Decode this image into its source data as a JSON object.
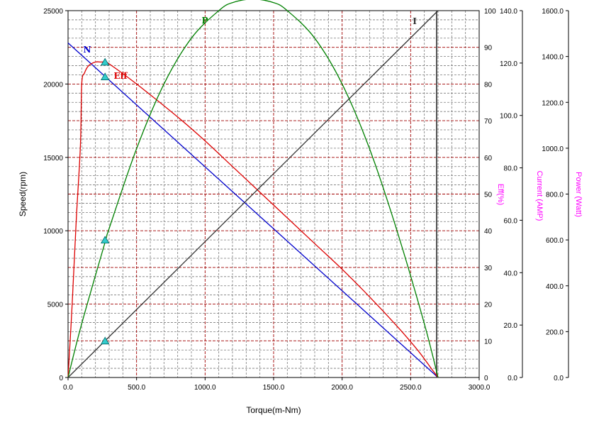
{
  "chart_data": {
    "type": "line",
    "x_axis": {
      "label": "Torque(m-Nm)",
      "range": [
        0,
        3000
      ],
      "ticks": [
        "0.0",
        "500.0",
        "1000.0",
        "1500.0",
        "2000.0",
        "2500.0",
        "3000.0"
      ]
    },
    "y_axes": {
      "speed": {
        "label": "Speed(rpm)",
        "range": [
          0,
          25000
        ],
        "ticks": [
          "0",
          "5000",
          "10000",
          "15000",
          "20000",
          "25000"
        ]
      },
      "eff": {
        "label": "Eff(%)",
        "range": [
          0,
          100
        ],
        "ticks": [
          "0",
          "10",
          "20",
          "30",
          "40",
          "50",
          "60",
          "70",
          "80",
          "90",
          "100"
        ]
      },
      "current": {
        "label": "Current (AMP)",
        "range": [
          0,
          140
        ],
        "ticks": [
          "0.0",
          "20.0",
          "40.0",
          "60.0",
          "80.0",
          "100.0",
          "120.0",
          "140.0"
        ]
      },
      "power": {
        "label": "Power (Watt)",
        "range": [
          0,
          1600
        ],
        "ticks": [
          "0.0",
          "200.0",
          "400.0",
          "600.0",
          "800.0",
          "1000.0",
          "1200.0",
          "1400.0",
          "1600.0"
        ]
      }
    },
    "series": [
      {
        "name": "N",
        "axis": "speed",
        "color": "#0000cc",
        "x": [
          0,
          2700
        ],
        "y": [
          22800,
          0
        ]
      },
      {
        "name": "Eff",
        "axis": "eff",
        "color": "#dd0000",
        "x": [
          0,
          30,
          60,
          90,
          100,
          120,
          150,
          200,
          240,
          270,
          300,
          500,
          800,
          1000,
          1200,
          1500,
          1800,
          2000,
          2200,
          2400,
          2550,
          2650,
          2700
        ],
        "y": [
          0,
          20,
          43,
          63,
          80,
          83,
          85,
          86,
          86,
          86,
          85.5,
          80,
          71,
          64.5,
          57.5,
          47,
          36.5,
          29.5,
          22,
          14,
          7.5,
          2.5,
          0
        ]
      },
      {
        "name": "P",
        "axis": "power",
        "color": "#008000",
        "x": [
          0,
          100,
          270,
          300,
          500,
          700,
          900,
          1100,
          1200,
          1350,
          1500,
          1600,
          1800,
          2000,
          2200,
          2400,
          2600,
          2700
        ],
        "y": [
          0,
          235,
          590,
          650,
          998,
          1280,
          1480,
          1600,
          1635,
          1650,
          1635,
          1600,
          1480,
          1280,
          998,
          641,
          234,
          0
        ]
      },
      {
        "name": "I",
        "axis": "current",
        "color": "#333333",
        "x": [
          0,
          2700
        ],
        "y": [
          0,
          140
        ]
      }
    ],
    "markers": [
      {
        "series": "Eff",
        "x": 270,
        "y": 86
      },
      {
        "series": "N",
        "x": 270,
        "y": 20500
      },
      {
        "series": "P",
        "x": 270,
        "y": 600
      },
      {
        "series": "I",
        "x": 270,
        "y": 14
      }
    ],
    "grid": true,
    "legend": "none"
  }
}
